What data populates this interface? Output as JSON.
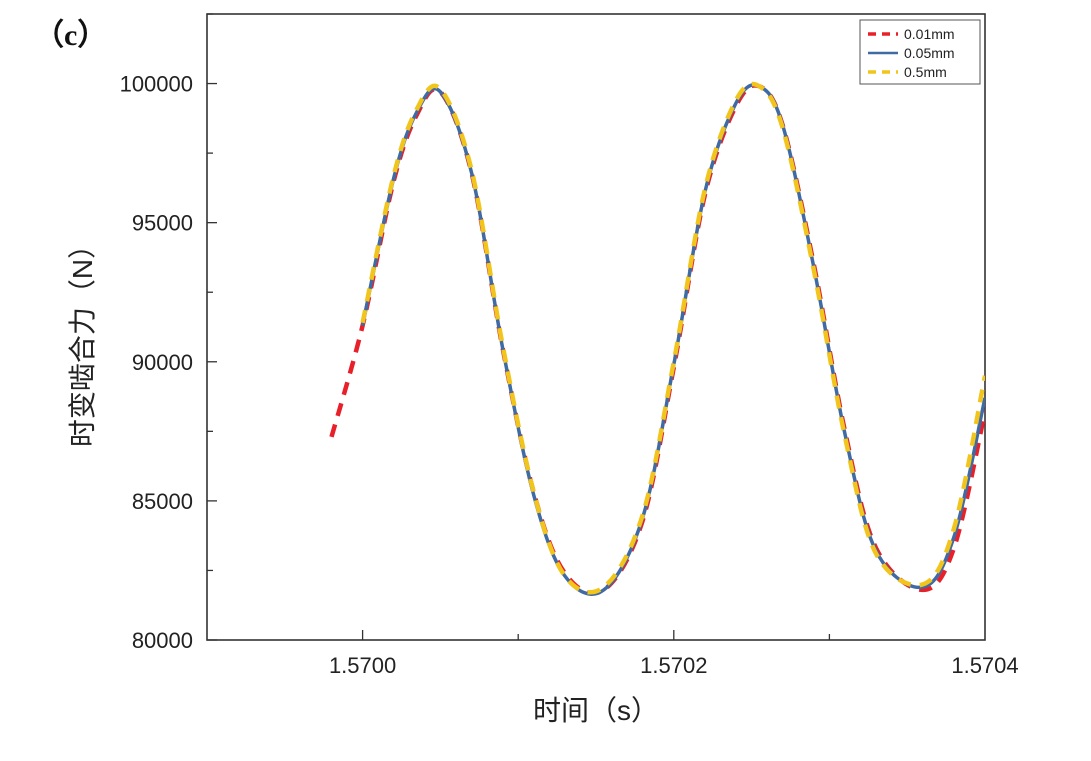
{
  "panel_label": "（c）",
  "chart_data": {
    "type": "line",
    "title": "",
    "xlabel": "时间（s）",
    "ylabel": "时变啮合力（N）",
    "xlim": [
      1.5699,
      1.5704
    ],
    "ylim": [
      80000,
      102500
    ],
    "x_ticks": [
      1.57,
      1.5702,
      1.5704
    ],
    "x_tick_labels": [
      "1.5700",
      "1.5702",
      "1.5704"
    ],
    "y_ticks": [
      80000,
      85000,
      90000,
      95000,
      100000
    ],
    "y_tick_labels": [
      "80000",
      "85000",
      "90000",
      "95000",
      "100000"
    ],
    "grid": false,
    "legend_position": "top-right",
    "series": [
      {
        "name": "0.01mm",
        "color": "#e8202a",
        "style": "dashed",
        "x": [
          1.56998,
          1.57,
          1.57002,
          1.570035,
          1.57005,
          1.57007,
          1.57009,
          1.57011,
          1.57013,
          1.570155,
          1.57018,
          1.5702,
          1.57022,
          1.57024,
          1.570255,
          1.57027,
          1.57029,
          1.57031,
          1.57033,
          1.57036,
          1.57038,
          1.5704
        ],
        "y": [
          87300,
          91300,
          96500,
          98900,
          99700,
          96800,
          90500,
          85300,
          82400,
          81800,
          84300,
          89800,
          96000,
          99200,
          99900,
          98500,
          93500,
          87500,
          83300,
          81800,
          83300,
          88200
        ]
      },
      {
        "name": "0.05mm",
        "color": "#3f6aa3",
        "style": "solid",
        "x": [
          1.57,
          1.57002,
          1.570035,
          1.57005,
          1.57007,
          1.57009,
          1.57011,
          1.57013,
          1.570155,
          1.57018,
          1.5702,
          1.57022,
          1.57024,
          1.570255,
          1.57027,
          1.57029,
          1.57031,
          1.57033,
          1.57036,
          1.57038,
          1.5704
        ],
        "y": [
          91300,
          96600,
          99000,
          99700,
          96800,
          90500,
          85200,
          82300,
          81800,
          84400,
          89900,
          96100,
          99300,
          99900,
          98500,
          93400,
          87400,
          83200,
          81900,
          83700,
          88700
        ]
      },
      {
        "name": "0.5mm",
        "color": "#f2c51c",
        "style": "dashed",
        "x": [
          1.57,
          1.57002,
          1.570035,
          1.57005,
          1.57007,
          1.57009,
          1.57011,
          1.57013,
          1.570155,
          1.57018,
          1.5702,
          1.57022,
          1.57024,
          1.570255,
          1.57027,
          1.57029,
          1.57031,
          1.57033,
          1.57036,
          1.57038,
          1.5704
        ],
        "y": [
          91400,
          96700,
          99100,
          99800,
          96900,
          90600,
          85300,
          82300,
          81900,
          84500,
          90000,
          96200,
          99400,
          99900,
          98400,
          93300,
          87300,
          83100,
          82000,
          84000,
          89500
        ]
      }
    ]
  }
}
